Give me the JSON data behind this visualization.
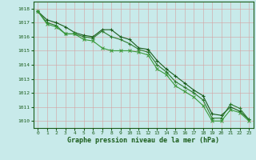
{
  "xlabel": "Graphe pression niveau de la mer (hPa)",
  "background_color": "#c8eaea",
  "grid_color": "#c8d8c8",
  "line_color_1": "#1a5c1a",
  "line_color_2": "#2d7a2d",
  "line_color_3": "#3a9a3a",
  "xlim": [
    -0.5,
    23.5
  ],
  "ylim": [
    1009.5,
    1018.5
  ],
  "yticks": [
    1010,
    1011,
    1012,
    1013,
    1014,
    1015,
    1016,
    1017,
    1018
  ],
  "xticks": [
    0,
    1,
    2,
    3,
    4,
    5,
    6,
    7,
    8,
    9,
    10,
    11,
    12,
    13,
    14,
    15,
    16,
    17,
    18,
    19,
    20,
    21,
    22,
    23
  ],
  "hours": [
    0,
    1,
    2,
    3,
    4,
    5,
    6,
    7,
    8,
    9,
    10,
    11,
    12,
    13,
    14,
    15,
    16,
    17,
    18,
    19,
    20,
    21,
    22,
    23
  ],
  "line1": [
    1017.8,
    1017.2,
    1017.0,
    1016.7,
    1016.3,
    1016.1,
    1016.0,
    1016.5,
    1016.5,
    1016.0,
    1015.8,
    1015.2,
    1015.1,
    1014.3,
    1013.7,
    1013.2,
    1012.7,
    1012.2,
    1011.8,
    1010.5,
    1010.4,
    1011.0,
    1010.7,
    1010.1
  ],
  "line2": [
    1017.8,
    1017.0,
    1016.8,
    1016.2,
    1016.2,
    1016.0,
    1015.9,
    1016.4,
    1016.0,
    1015.8,
    1015.5,
    1015.1,
    1014.9,
    1014.0,
    1013.5,
    1012.8,
    1012.4,
    1012.0,
    1011.5,
    1010.2,
    1010.2,
    1011.2,
    1010.9,
    1010.1
  ],
  "line3": [
    1017.8,
    1016.9,
    1016.7,
    1016.2,
    1016.2,
    1015.8,
    1015.7,
    1015.2,
    1015.0,
    1015.0,
    1015.0,
    1014.9,
    1014.7,
    1013.7,
    1013.3,
    1012.5,
    1012.1,
    1011.7,
    1011.1,
    1010.0,
    1010.0,
    1010.8,
    1010.6,
    1010.0
  ],
  "tick_fontsize": 4.5,
  "xlabel_fontsize": 6.0,
  "tick_color": "#1a5c1a",
  "spine_color": "#1a5c1a"
}
